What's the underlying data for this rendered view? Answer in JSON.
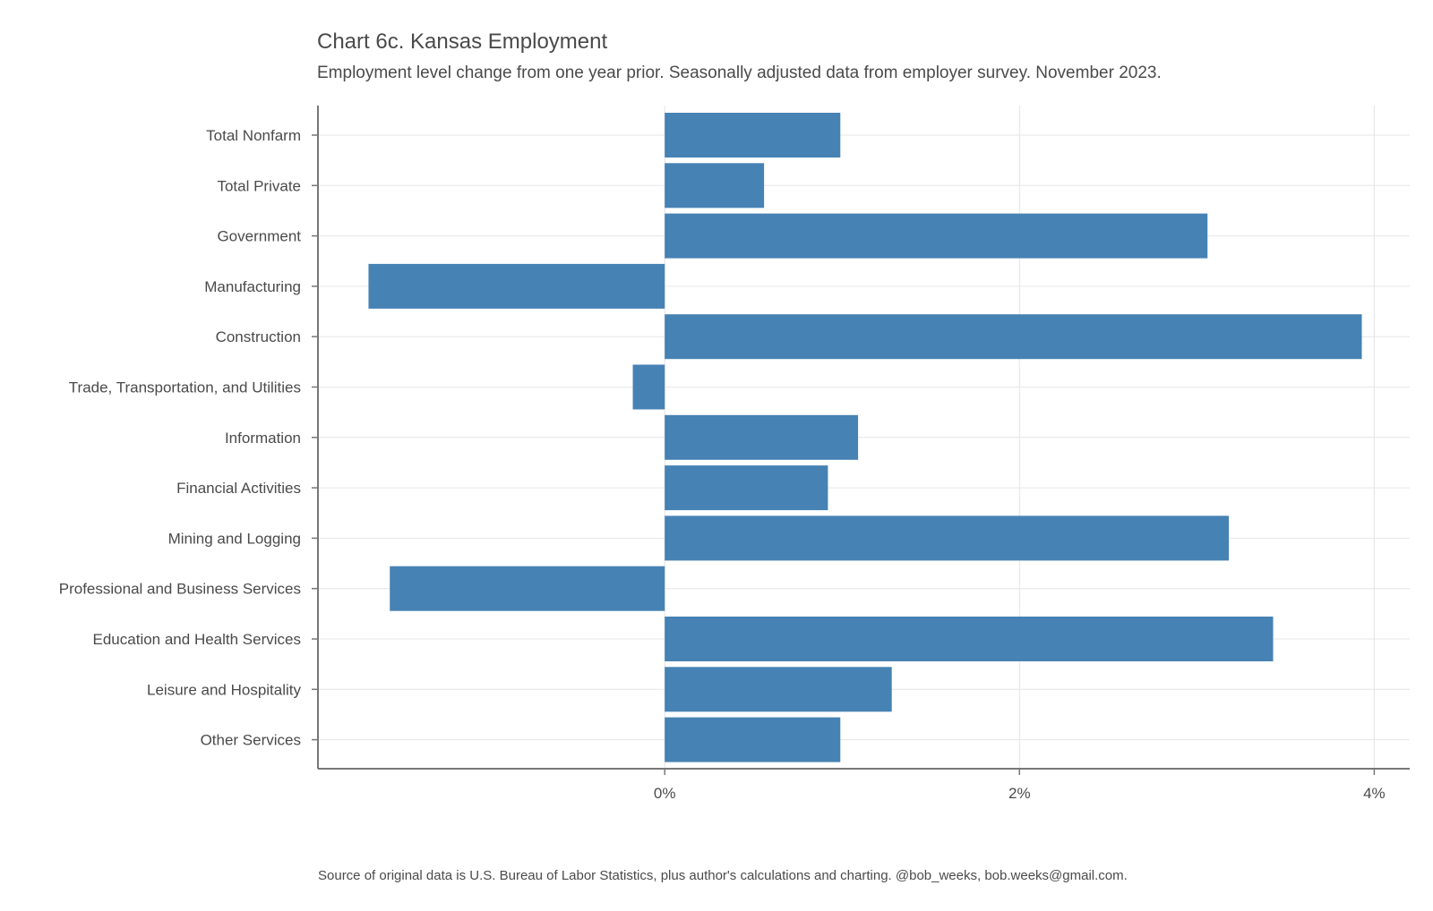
{
  "chart_data": {
    "type": "bar",
    "orientation": "horizontal",
    "title": "Chart 6c. Kansas Employment",
    "subtitle": "Employment level change from one year prior. Seasonally adjusted data from employer survey. November 2023.",
    "caption": "Source of original data is U.S. Bureau of Labor Statistics, plus author's calculations and charting. @bob_weeks, bob.weeks@gmail.com.",
    "xlabel": "",
    "ylabel": "",
    "categories": [
      "Total Nonfarm",
      "Total Private",
      "Government",
      "Manufacturing",
      "Construction",
      "Trade, Transportation, and Utilities",
      "Information",
      "Financial Activities",
      "Mining and Logging",
      "Professional and Business Services",
      "Education and Health Services",
      "Leisure and Hospitality",
      "Other Services"
    ],
    "values": [
      0.99,
      0.56,
      3.06,
      -1.67,
      3.93,
      -0.18,
      1.09,
      0.92,
      3.18,
      -1.55,
      3.43,
      1.28,
      0.99
    ],
    "xlim": [
      -1.95,
      4.2
    ],
    "xticks": [
      0,
      2,
      4
    ],
    "xtick_labels": [
      "0%",
      "2%",
      "4%"
    ],
    "grid": true,
    "bar_color": "#4682b4"
  }
}
